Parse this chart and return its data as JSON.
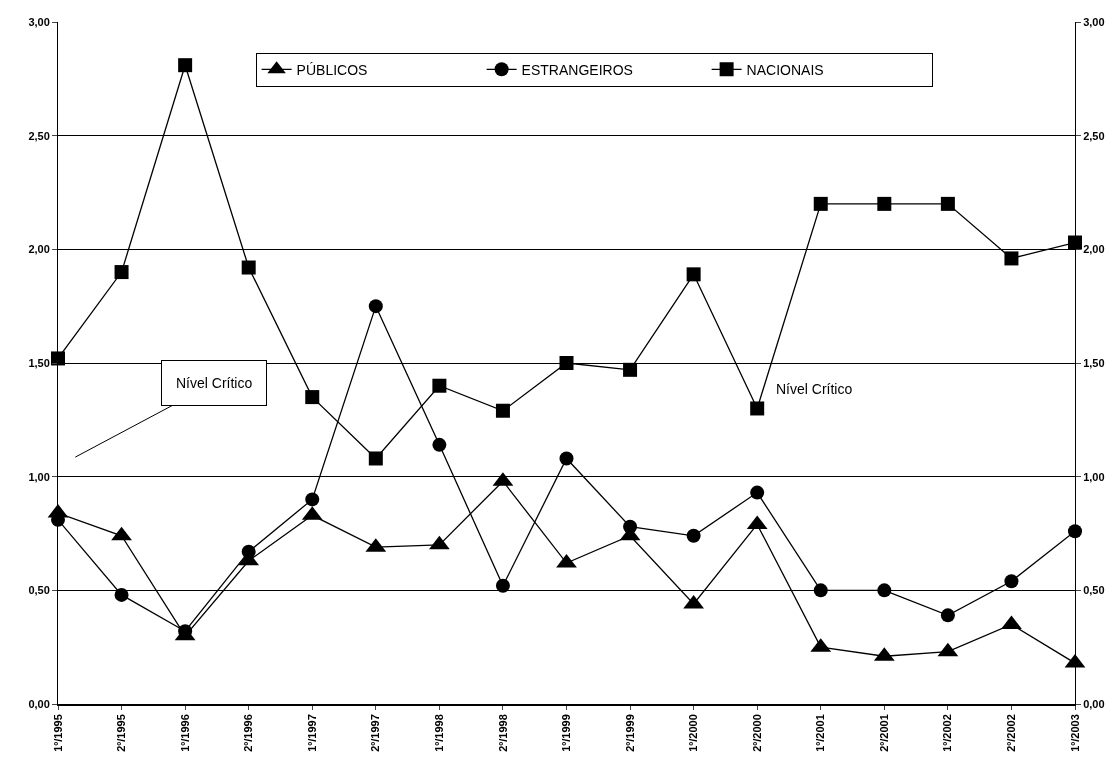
{
  "chart_data": {
    "type": "line",
    "categories": [
      "1º/1995",
      "2º/1995",
      "1º/1996",
      "2º/1996",
      "1º/1997",
      "2º/1997",
      "1º/1998",
      "2º/1998",
      "1º/1999",
      "2º/1999",
      "1º/2000",
      "2º/2000",
      "1º/2001",
      "2º/2001",
      "1º/2002",
      "2º/2002",
      "1º/2003"
    ],
    "series": [
      {
        "name": "PÚBLICOS",
        "color": "#000000",
        "marker": "triangle",
        "values": [
          0.84,
          0.74,
          0.3,
          0.63,
          0.83,
          0.69,
          0.7,
          0.98,
          0.62,
          0.74,
          0.44,
          0.79,
          0.25,
          0.21,
          0.23,
          0.35,
          0.18
        ]
      },
      {
        "name": "ESTRANGEIROS",
        "color": "#000000",
        "marker": "circle",
        "values": [
          0.81,
          0.48,
          0.32,
          0.67,
          0.9,
          1.75,
          1.14,
          0.52,
          1.08,
          0.78,
          0.74,
          0.93,
          0.5,
          0.5,
          0.39,
          0.54,
          0.76
        ]
      },
      {
        "name": "NACIONAIS",
        "color": "#000000",
        "marker": "square",
        "values": [
          1.52,
          1.9,
          2.81,
          1.92,
          1.35,
          1.08,
          1.4,
          1.29,
          1.5,
          1.47,
          1.89,
          1.3,
          2.2,
          2.2,
          2.2,
          1.96,
          2.03
        ]
      }
    ],
    "ylim": [
      0,
      3
    ],
    "yticks": [
      {
        "value": 0,
        "label": "0,00"
      },
      {
        "value": 0.5,
        "label": "0,50"
      },
      {
        "value": 1,
        "label": "1,00"
      },
      {
        "value": 1.5,
        "label": "1,50"
      },
      {
        "value": 2,
        "label": "2,00"
      },
      {
        "value": 2.5,
        "label": "2,50"
      },
      {
        "value": 3,
        "label": "3,00"
      }
    ],
    "y2lim": [
      0,
      3
    ],
    "y2ticks": [
      {
        "value": 0,
        "label": "0,00"
      },
      {
        "value": 0.5,
        "label": "0,50"
      },
      {
        "value": 1,
        "label": "1,00"
      },
      {
        "value": 1.5,
        "label": "1,50"
      },
      {
        "value": 2,
        "label": "2,00"
      },
      {
        "value": 2.5,
        "label": "2,50"
      },
      {
        "value": 3,
        "label": "3,00"
      }
    ],
    "annotations": [
      "Nível Crítico",
      "Nível Crítico"
    ],
    "grid": "y",
    "legend": "top",
    "line_style": "solid"
  }
}
